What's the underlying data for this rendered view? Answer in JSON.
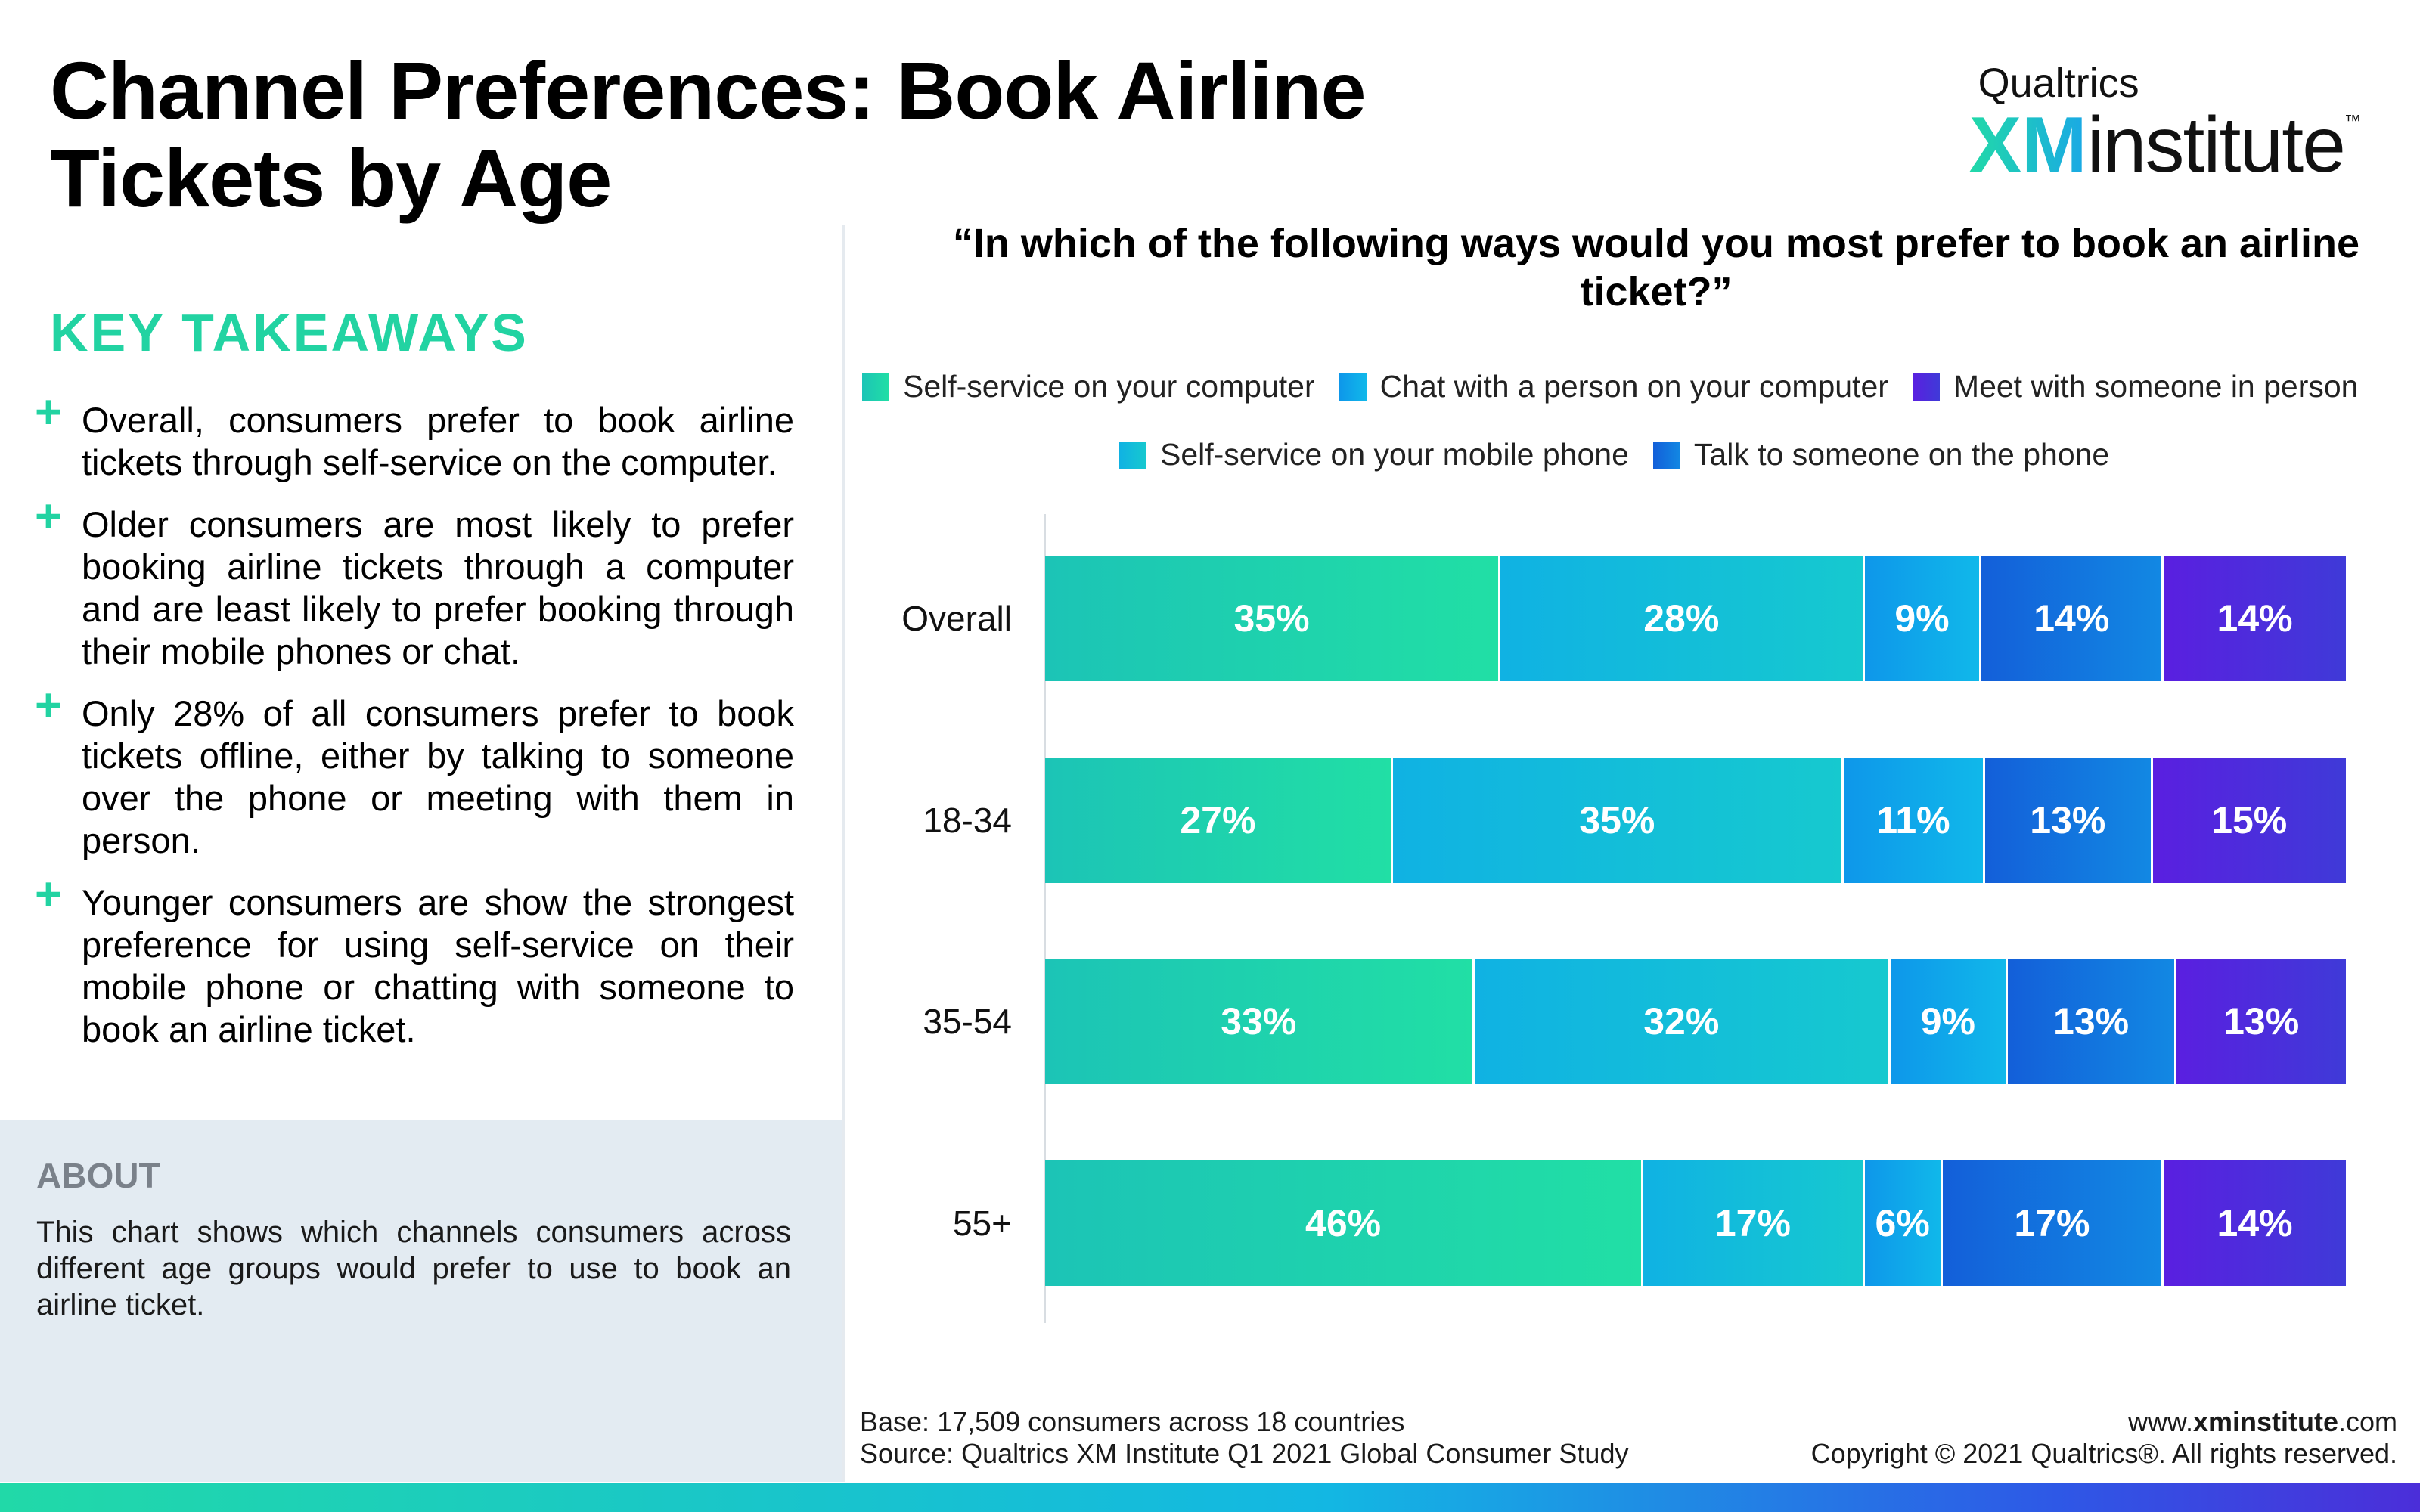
{
  "header": {
    "title": "Channel Preferences: Book Airline Tickets by Age",
    "logo_top": "Qualtrics",
    "logo_xm": "XM",
    "logo_institute": "institute",
    "logo_tm": "™"
  },
  "takeaways": {
    "heading": "KEY TAKEAWAYS",
    "plus_glyph": "+",
    "items": [
      "Overall, consumers prefer to book airline tickets through self-service on the computer.",
      "Older consumers are most likely to prefer booking airline tickets through a computer and are least likely to prefer booking through their mobile phones or chat.",
      "Only 28% of all consumers prefer to book tickets offline, either by talking to someone over the phone or meeting with them in person.",
      "Younger consumers are show the strongest preference for using self-service on their mobile phone or chatting with someone to book an airline ticket."
    ]
  },
  "about": {
    "heading": "ABOUT",
    "text": "This chart shows which channels consumers across different age groups would prefer to use to book an airline ticket."
  },
  "colors": {
    "accent_green": "#22d3a2",
    "about_bg": "#e3ebf2"
  },
  "chart_data": {
    "type": "bar",
    "orientation": "horizontal",
    "stacked": true,
    "title": "“In which of the following ways would you most prefer to book an airline ticket?”",
    "categories": [
      "Overall",
      "18-34",
      "35-54",
      "55+"
    ],
    "series": [
      {
        "name": "Self-service on your computer",
        "values": [
          35,
          27,
          33,
          46
        ],
        "color_start": "#1cc4b6",
        "color_end": "#21dfa5"
      },
      {
        "name": "Self-service on your mobile phone",
        "values": [
          28,
          35,
          32,
          17
        ],
        "color_start": "#10b2e3",
        "color_end": "#16c9cf"
      },
      {
        "name": "Chat with a person on your computer",
        "values": [
          9,
          11,
          9,
          6
        ],
        "color_start": "#0e97ea",
        "color_end": "#10b8ea"
      },
      {
        "name": "Talk to someone on the phone",
        "values": [
          14,
          13,
          13,
          17
        ],
        "color_start": "#135fd9",
        "color_end": "#1288e3"
      },
      {
        "name": "Meet with someone in person",
        "values": [
          14,
          15,
          13,
          14
        ],
        "color_start": "#5a1fe0",
        "color_end": "#3f3ad8"
      }
    ],
    "value_suffix": "%",
    "legend_rows": [
      [
        "Self-service on your computer",
        "Chat with a person on your computer",
        "Meet with someone in person"
      ],
      [
        "Self-service on your mobile phone",
        "Talk to someone on the phone"
      ]
    ],
    "legend_position": "top",
    "grid": false
  },
  "footer": {
    "base": "Base: 17,509 consumers across 18 countries",
    "source": "Source: Qualtrics XM Institute Q1 2021 Global Consumer Study",
    "site_prefix": "www.",
    "site_bold": "xminstitute",
    "site_suffix": ".com",
    "copyright": "Copyright © 2021 Qualtrics®. All rights reserved."
  }
}
